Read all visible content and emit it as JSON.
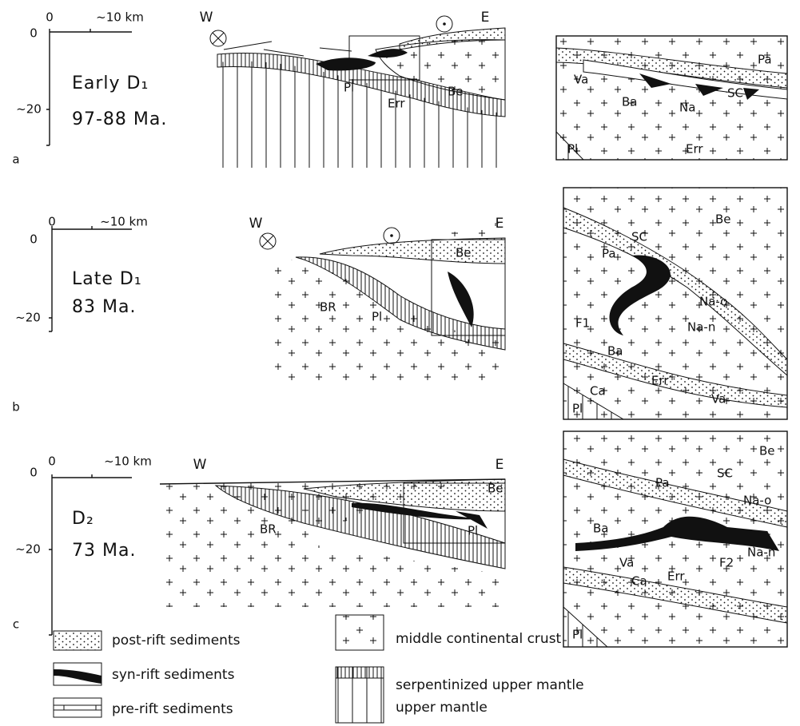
{
  "panels": [
    {
      "letter": "a",
      "scale": {
        "origin": "0",
        "length": "~10 km"
      },
      "depth": {
        "top": "0",
        "bottom": "~20"
      },
      "title": "Early D₁",
      "age": "97-88 Ma.",
      "section": {
        "west": "W",
        "east": "E",
        "labels": [
          "Pl",
          "Err",
          "Be"
        ]
      },
      "inset": {
        "labels": [
          "Va",
          "Pa",
          "Ba",
          "Na",
          "SC",
          "Pl",
          "Err"
        ]
      }
    },
    {
      "letter": "b",
      "scale": {
        "origin": "0",
        "length": "~10 km"
      },
      "depth": {
        "top": "0",
        "bottom": "~20"
      },
      "title": "Late D₁",
      "age": "83 Ma.",
      "section": {
        "west": "W",
        "east": "E",
        "labels": [
          "BR",
          "Pl",
          "Be"
        ]
      },
      "inset": {
        "labels": [
          "Be",
          "SC",
          "Pa",
          "F1",
          "Na-o",
          "Na-n",
          "Ba",
          "Ca",
          "Err",
          "Va",
          "Pl"
        ]
      }
    },
    {
      "letter": "c",
      "scale": {
        "origin": "0",
        "length": "~10 km"
      },
      "depth": {
        "top": "0",
        "bottom": "~20"
      },
      "title": "D₂",
      "age": "73 Ma.",
      "section": {
        "west": "W",
        "east": "E",
        "labels": [
          "BR",
          "Pl",
          "Be"
        ]
      },
      "inset": {
        "labels": [
          "Be",
          "Pa",
          "SC",
          "Na-o",
          "Ba",
          "Va",
          "F2",
          "Na-n",
          "Ca",
          "Err",
          "Pl"
        ]
      }
    }
  ],
  "legend": {
    "items": [
      "post-rift sediments",
      "syn-rift sediments",
      "pre-rift sediments",
      "middle continental crust",
      "serpentinized upper mantle",
      "upper mantle"
    ]
  }
}
